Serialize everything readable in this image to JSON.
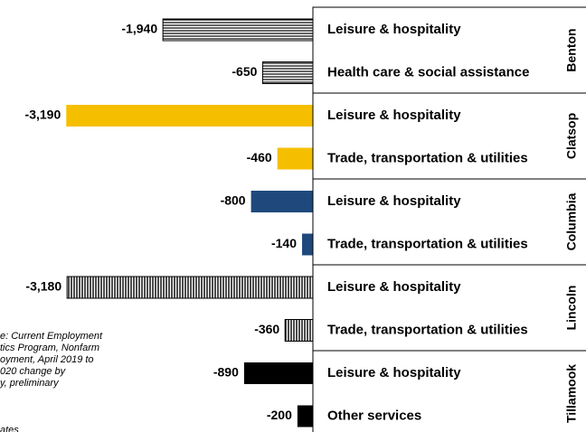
{
  "chart_data": {
    "type": "bar",
    "orientation": "horizontal",
    "xlim": [
      -4000,
      0
    ],
    "groups": [
      {
        "name": "Benton",
        "color": "#000000",
        "pattern": "horizontal-lines",
        "categories": [
          "Leisure & hospitality",
          "Health care & social assistance"
        ],
        "values": [
          -1940,
          -650
        ],
        "value_labels": [
          "-1,940",
          "-650"
        ]
      },
      {
        "name": "Clatsop",
        "color": "#f5bf00",
        "pattern": "solid",
        "categories": [
          "Leisure & hospitality",
          "Trade, transportation & utilities"
        ],
        "values": [
          -3190,
          -460
        ],
        "value_labels": [
          "-3,190",
          "-460"
        ]
      },
      {
        "name": "Columbia",
        "color": "#1f497d",
        "pattern": "solid",
        "categories": [
          "Leisure & hospitality",
          "Trade, transportation & utilities"
        ],
        "values": [
          -800,
          -140
        ],
        "value_labels": [
          "-800",
          "-140"
        ]
      },
      {
        "name": "Lincoln",
        "color": "#000000",
        "pattern": "vertical-lines",
        "categories": [
          "Leisure & hospitality",
          "Trade, transportation & utilities"
        ],
        "values": [
          -3180,
          -360
        ],
        "value_labels": [
          "-3,180",
          "-360"
        ]
      },
      {
        "name": "Tillamook",
        "color": "#000000",
        "pattern": "solid",
        "categories": [
          "Leisure & hospitality",
          "Other services"
        ],
        "values": [
          -890,
          -200
        ],
        "value_labels": [
          "-890",
          "-200"
        ]
      }
    ],
    "note": [
      "e: Current Employment",
      "tics Program, Nonfarm",
      "oyment, April 2019 to",
      "020 change by",
      "y, preliminary",
      "ates"
    ]
  }
}
